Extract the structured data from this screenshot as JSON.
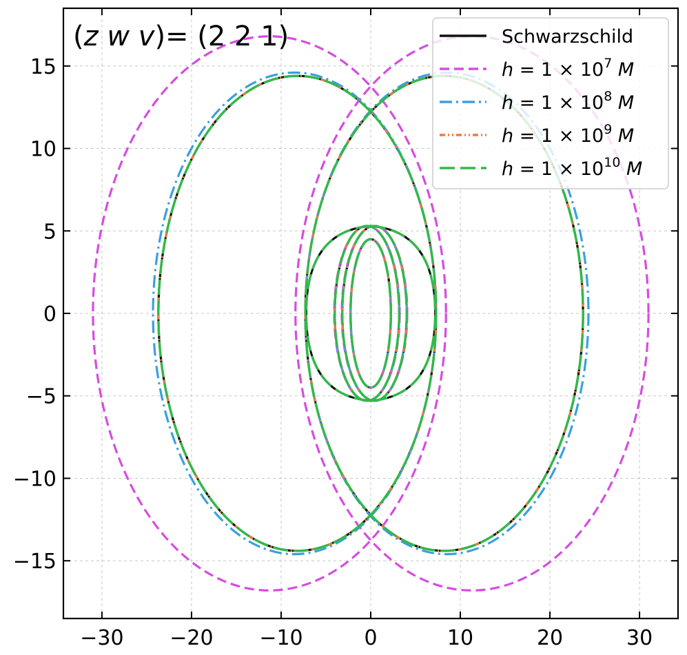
{
  "chart_data": {
    "type": "line",
    "title": "(z w v) = (2 2 1)",
    "title_parts": {
      "z": "z",
      "w": "w",
      "v": "v",
      "rhs": "= (2 2 1)"
    },
    "xlabel": "",
    "ylabel": "",
    "xlim": [
      -34.3,
      34.3
    ],
    "ylim": [
      -18.5,
      18.5
    ],
    "xticks": [
      -30,
      -20,
      -10,
      0,
      10,
      20,
      30
    ],
    "yticks": [
      -15,
      -10,
      -5,
      0,
      5,
      10,
      15
    ],
    "tick_labels_x": [
      "−30",
      "−20",
      "−10",
      "0",
      "10",
      "20",
      "30"
    ],
    "tick_labels_y": [
      "−15",
      "−10",
      "−5",
      "0",
      "5",
      "10",
      "15"
    ],
    "grid": true,
    "legend_position": "top-right",
    "orbit": {
      "description_note": "periodic orbit traced as overlapping loops",
      "zoom_whirl_lobes": 2
    },
    "series": [
      {
        "name": "Schwarzschild",
        "legend": {
          "main": "Schwarzschild"
        },
        "color": "#111111",
        "dash": "solid",
        "outer_loops": [
          {
            "cx": -8.2,
            "cy": 0,
            "rx": 15.5,
            "ry": 14.4
          },
          {
            "cx": 8.2,
            "cy": 0,
            "rx": 15.5,
            "ry": 14.4
          }
        ],
        "inner_loops": [
          {
            "cx": 0,
            "cy": 0,
            "rx": 7.2,
            "ry": 5.3,
            "offset": -1.4
          },
          {
            "cx": 0,
            "cy": 0,
            "rx": 7.2,
            "ry": 5.3,
            "offset": 1.4
          },
          {
            "cx": 0,
            "cy": 0,
            "rx": 4.5,
            "ry": 4.5,
            "offset": 0
          }
        ]
      },
      {
        "name": "h = 1 × 10^7 M",
        "legend": {
          "prefix": "h = 1 × 10",
          "exp": "7",
          "suffix": " M"
        },
        "color": "#d64ce0",
        "dash": "dashed",
        "outer_loops": [
          {
            "cx": -11.3,
            "cy": 0,
            "rx": 19.7,
            "ry": 16.8
          },
          {
            "cx": 11.3,
            "cy": 0,
            "rx": 19.7,
            "ry": 16.8
          }
        ],
        "inner_loops": [
          {
            "cx": 0,
            "cy": 0,
            "rx": 7.3,
            "ry": 5.3,
            "offset": -1.4
          },
          {
            "cx": 0,
            "cy": 0,
            "rx": 7.3,
            "ry": 5.3,
            "offset": 1.4
          },
          {
            "cx": 0,
            "cy": 0,
            "rx": 4.5,
            "ry": 4.5,
            "offset": 0
          }
        ]
      },
      {
        "name": "h = 1 × 10^8 M",
        "legend": {
          "prefix": "h = 1 × 10",
          "exp": "8",
          "suffix": " M"
        },
        "color": "#3a9fe0",
        "dash": "dashdot",
        "outer_loops": [
          {
            "cx": -8.5,
            "cy": 0,
            "rx": 15.8,
            "ry": 14.6
          },
          {
            "cx": 8.5,
            "cy": 0,
            "rx": 15.8,
            "ry": 14.6
          }
        ],
        "inner_loops": [
          {
            "cx": 0,
            "cy": 0,
            "rx": 7.2,
            "ry": 5.3,
            "offset": -1.4
          },
          {
            "cx": 0,
            "cy": 0,
            "rx": 7.2,
            "ry": 5.3,
            "offset": 1.4
          },
          {
            "cx": 0,
            "cy": 0,
            "rx": 4.5,
            "ry": 4.5,
            "offset": 0
          }
        ]
      },
      {
        "name": "h = 1 × 10^9 M",
        "legend": {
          "prefix": "h = 1 × 10",
          "exp": "9",
          "suffix": " M"
        },
        "color": "#f27a3a",
        "dash": "dashdotdot",
        "outer_loops": [
          {
            "cx": -8.2,
            "cy": 0,
            "rx": 15.5,
            "ry": 14.4
          },
          {
            "cx": 8.2,
            "cy": 0,
            "rx": 15.5,
            "ry": 14.4
          }
        ],
        "inner_loops": [
          {
            "cx": 0,
            "cy": 0,
            "rx": 7.2,
            "ry": 5.3,
            "offset": -1.4
          },
          {
            "cx": 0,
            "cy": 0,
            "rx": 7.2,
            "ry": 5.3,
            "offset": 1.4
          },
          {
            "cx": 0,
            "cy": 0,
            "rx": 4.5,
            "ry": 4.5,
            "offset": 0
          }
        ]
      },
      {
        "name": "h = 1 × 10^10 M",
        "legend": {
          "prefix": "h = 1 × 10",
          "exp": "10",
          "suffix": " M"
        },
        "color": "#33b84a",
        "dash": "longdash",
        "outer_loops": [
          {
            "cx": -8.2,
            "cy": 0,
            "rx": 15.5,
            "ry": 14.4
          },
          {
            "cx": 8.2,
            "cy": 0,
            "rx": 15.5,
            "ry": 14.4
          }
        ],
        "inner_loops": [
          {
            "cx": 0,
            "cy": 0,
            "rx": 7.2,
            "ry": 5.3,
            "offset": -1.4
          },
          {
            "cx": 0,
            "cy": 0,
            "rx": 7.2,
            "ry": 5.3,
            "offset": 1.4
          },
          {
            "cx": 0,
            "cy": 0,
            "rx": 4.5,
            "ry": 4.5,
            "offset": 0
          }
        ]
      }
    ]
  }
}
